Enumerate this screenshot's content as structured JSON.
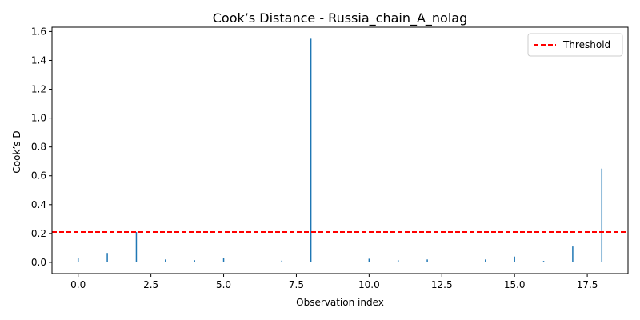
{
  "chart_data": {
    "type": "stem",
    "title": "Cook’s Distance - Russia_chain_A_nolag",
    "xlabel": "Observation index",
    "ylabel": "Cook’s D",
    "x": [
      0,
      1,
      2,
      3,
      4,
      5,
      6,
      7,
      8,
      9,
      10,
      11,
      12,
      13,
      14,
      15,
      16,
      17,
      18
    ],
    "values": [
      0.03,
      0.065,
      0.21,
      0.02,
      0.015,
      0.03,
      0.005,
      0.012,
      1.55,
      0.005,
      0.025,
      0.015,
      0.02,
      0.005,
      0.02,
      0.04,
      0.01,
      0.11,
      0.65
    ],
    "threshold": 0.2105,
    "xlim": [
      -0.9,
      18.9
    ],
    "ylim": [
      -0.078,
      1.63
    ],
    "xticks": [
      "0.0",
      "2.5",
      "5.0",
      "7.5",
      "10.0",
      "12.5",
      "15.0",
      "17.5"
    ],
    "xtick_values": [
      0,
      2.5,
      5,
      7.5,
      10,
      12.5,
      15,
      17.5
    ],
    "yticks": [
      "0.0",
      "0.2",
      "0.4",
      "0.6",
      "0.8",
      "1.0",
      "1.2",
      "1.4",
      "1.6"
    ],
    "ytick_values": [
      0,
      0.2,
      0.4,
      0.6,
      0.8,
      1.0,
      1.2,
      1.4,
      1.6
    ],
    "legend": [
      {
        "label": "Threshold",
        "style": "dashed",
        "color": "#ff0000"
      }
    ],
    "legend_position": "top-right",
    "grid": false,
    "stem_color": "#1f77b4",
    "threshold_color": "#ff0000"
  }
}
